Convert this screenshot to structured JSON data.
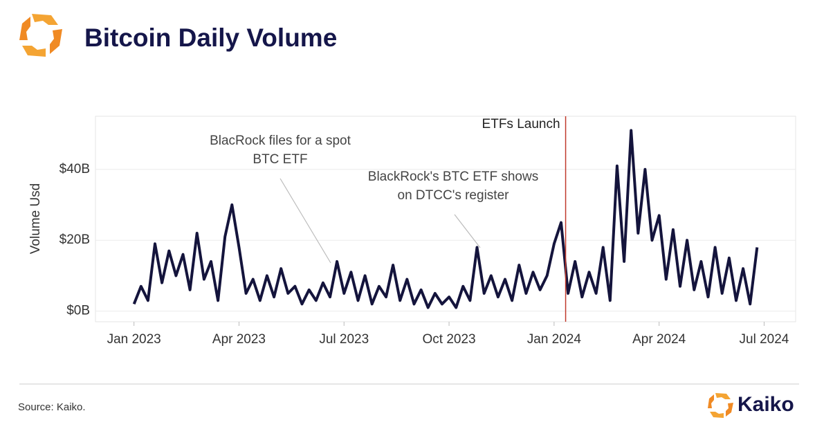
{
  "title": "Bitcoin Daily Volume",
  "source": "Source: Kaiko.",
  "brand": "Kaiko",
  "chart_data": {
    "type": "line",
    "y_label": "Volume Usd",
    "color": "#14143c",
    "x": [
      0,
      0.2,
      0.4,
      0.6,
      0.8,
      1,
      1.2,
      1.4,
      1.6,
      1.8,
      2,
      2.2,
      2.4,
      2.6,
      2.8,
      3,
      3.2,
      3.4,
      3.6,
      3.8,
      4,
      4.2,
      4.4,
      4.6,
      4.8,
      5,
      5.2,
      5.4,
      5.6,
      5.8,
      6,
      6.2,
      6.4,
      6.6,
      6.8,
      7,
      7.2,
      7.4,
      7.6,
      7.8,
      8,
      8.2,
      8.4,
      8.6,
      8.8,
      9,
      9.2,
      9.4,
      9.6,
      9.8,
      10,
      10.2,
      10.4,
      10.6,
      10.8,
      11,
      11.2,
      11.4,
      11.6,
      11.8,
      12,
      12.2,
      12.4,
      12.6,
      12.8,
      13,
      13.2,
      13.4,
      13.6,
      13.8,
      14,
      14.2,
      14.4,
      14.6,
      14.8,
      15,
      15.2,
      15.4,
      15.6,
      15.8,
      16,
      16.2,
      16.4,
      16.6,
      16.8,
      17,
      17.2,
      17.4,
      17.6,
      17.8
    ],
    "values": [
      2,
      7,
      3,
      19,
      8,
      17,
      10,
      16,
      6,
      22,
      9,
      14,
      3,
      21,
      30,
      18,
      5,
      9,
      3,
      10,
      4,
      12,
      5,
      7,
      2,
      6,
      3,
      8,
      4,
      14,
      5,
      11,
      3,
      10,
      2,
      7,
      4,
      13,
      3,
      9,
      2,
      6,
      1,
      5,
      2,
      4,
      1,
      7,
      3,
      18,
      5,
      10,
      4,
      9,
      3,
      13,
      5,
      11,
      6,
      10,
      19,
      25,
      5,
      14,
      4,
      11,
      5,
      18,
      3,
      41,
      14,
      51,
      22,
      40,
      20,
      27,
      9,
      23,
      7,
      20,
      6,
      14,
      4,
      18,
      5,
      15,
      3,
      12,
      2,
      18
    ],
    "xlim": [
      -1.1,
      18.9
    ],
    "xticks": [
      {
        "value": 0,
        "label": "Jan 2023"
      },
      {
        "value": 3,
        "label": "Apr 2023"
      },
      {
        "value": 6,
        "label": "Jul 2023"
      },
      {
        "value": 9,
        "label": "Oct 2023"
      },
      {
        "value": 12,
        "label": "Jan 2024"
      },
      {
        "value": 15,
        "label": "Apr 2024"
      },
      {
        "value": 18,
        "label": "Jul 2024"
      }
    ],
    "ylim": [
      -3,
      55
    ],
    "yticks": [
      {
        "value": 0,
        "label": "$0B"
      },
      {
        "value": 20,
        "label": "$20B"
      },
      {
        "value": 40,
        "label": "$40B"
      }
    ],
    "grid": true,
    "vline": {
      "x": 12.33,
      "label": "ETFs Launch",
      "color": "#c0392b"
    },
    "annotations": [
      {
        "lines": [
          "BlacRock files for a spot",
          "BTC ETF"
        ]
      },
      {
        "lines": [
          "BlackRock's BTC ETF shows",
          "on DTCC's register"
        ]
      }
    ]
  }
}
